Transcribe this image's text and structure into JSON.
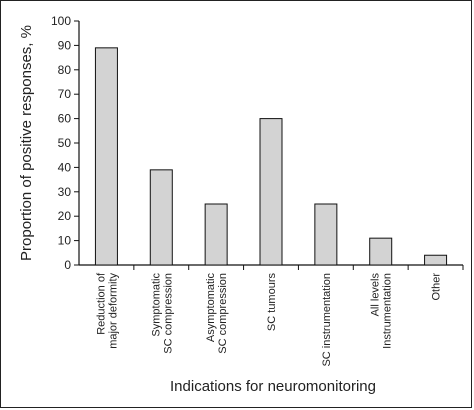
{
  "chart_data": {
    "type": "bar",
    "categories": [
      [
        "Reduction of",
        "major deformity"
      ],
      [
        "Symptomatic",
        "SC compression"
      ],
      [
        "Asymptomatic",
        "SC compression"
      ],
      [
        "SC tumours"
      ],
      [
        "SC instrumentation"
      ],
      [
        "All levels",
        "Instrumentation"
      ],
      [
        "Other"
      ]
    ],
    "values": [
      89,
      39,
      25,
      60,
      25,
      11,
      4
    ],
    "xlabel": "Indications for neuromonitoring",
    "ylabel": "Proportion of positive responses, %",
    "ylim": [
      0,
      100
    ],
    "yticks": [
      0,
      10,
      20,
      30,
      40,
      50,
      60,
      70,
      80,
      90,
      100
    ],
    "grid": false,
    "colors": {
      "bar_fill": "#d3d3d3",
      "bar_stroke": "#111111",
      "axis": "#111111"
    }
  }
}
